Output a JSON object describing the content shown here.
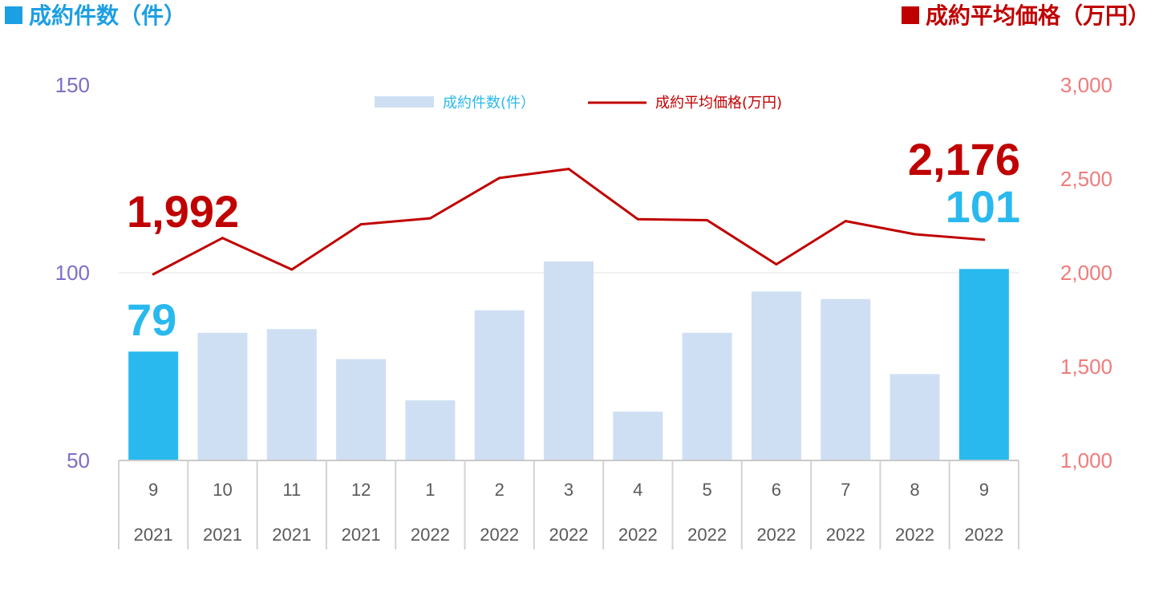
{
  "header": {
    "left_title": "成約件数（件）",
    "right_title": "成約平均価格（万円）"
  },
  "colors": {
    "bar_normal": "#cfdff3",
    "bar_highlight": "#29b9ee",
    "line": "#c00000",
    "label_count": "#29b9ee",
    "label_price": "#c00000"
  },
  "chart_data": {
    "type": "bar",
    "categories": [
      "9",
      "10",
      "11",
      "12",
      "1",
      "2",
      "3",
      "4",
      "5",
      "6",
      "7",
      "8",
      "9"
    ],
    "category_years": [
      "2021",
      "2021",
      "2021",
      "2021",
      "2022",
      "2022",
      "2022",
      "2022",
      "2022",
      "2022",
      "2022",
      "2022",
      "2022"
    ],
    "series": [
      {
        "name": "成約件数(件）",
        "type": "bar",
        "axis": "left",
        "values": [
          79,
          84,
          85,
          77,
          66,
          90,
          103,
          63,
          84,
          95,
          93,
          73,
          101
        ],
        "highlight": [
          true,
          false,
          false,
          false,
          false,
          false,
          false,
          false,
          false,
          false,
          false,
          false,
          true
        ]
      },
      {
        "name": "成約平均価格(万円)",
        "type": "line",
        "axis": "right",
        "values": [
          1992,
          2185,
          2017,
          2258,
          2290,
          2505,
          2553,
          2285,
          2280,
          2045,
          2275,
          2205,
          2176
        ]
      }
    ],
    "y_left": {
      "ylim": [
        50,
        150
      ],
      "ticks": [
        "50",
        "100",
        "150"
      ]
    },
    "y_right": {
      "ylim": [
        1000,
        3000
      ],
      "ticks": [
        "1,000",
        "1,500",
        "2,000",
        "2,500",
        "3,000"
      ]
    },
    "annotations": {
      "first_price": "1,992",
      "first_count": "79",
      "last_price": "2,176",
      "last_count": "101"
    },
    "gridlines": [
      "100"
    ],
    "legend_position": "top-center"
  }
}
